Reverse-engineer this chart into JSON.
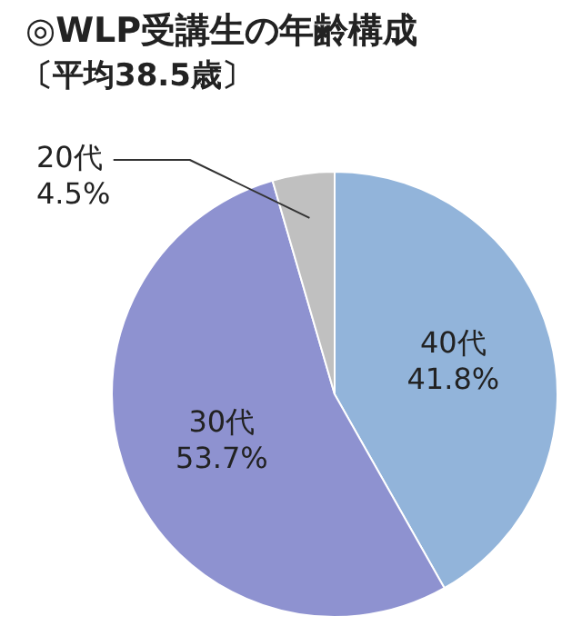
{
  "chart_data": {
    "type": "pie",
    "title": "◎WLP受講生の年齢構成",
    "subtitle": "〔平均38.5歳〕",
    "categories": [
      "40代",
      "30代",
      "20代"
    ],
    "values": [
      41.8,
      53.7,
      4.5
    ],
    "colors": [
      "#92b4da",
      "#8e92d0",
      "#c0c0c0"
    ],
    "value_labels": [
      "41.8%",
      "53.7%",
      "4.5%"
    ],
    "legend": false
  }
}
